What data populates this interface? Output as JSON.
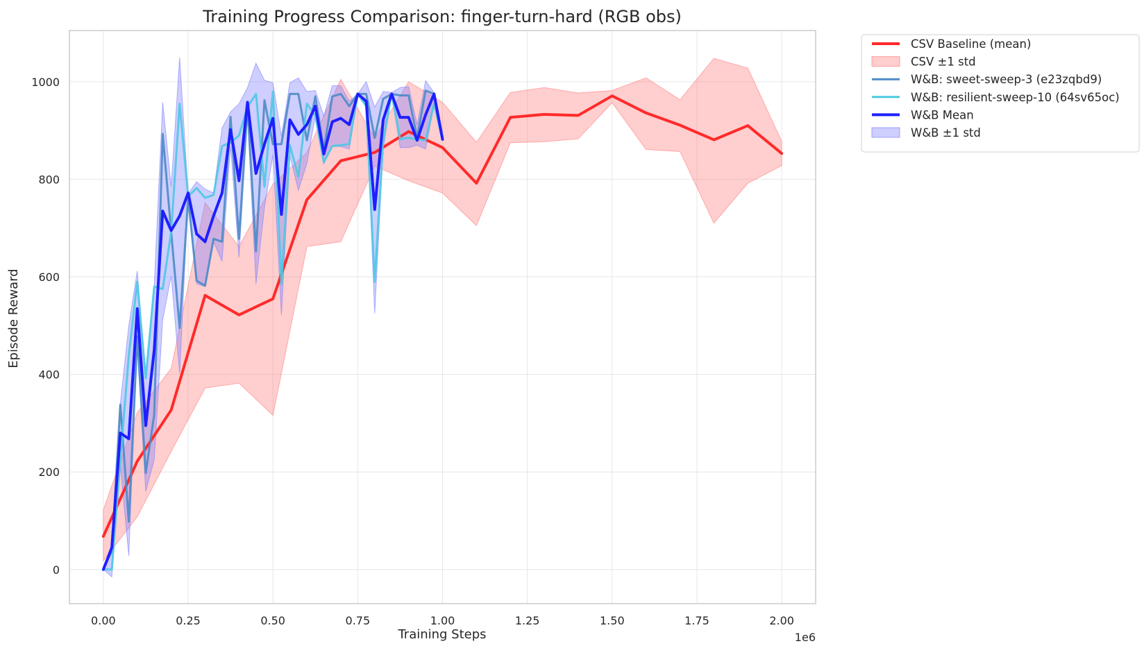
{
  "chart_data": {
    "type": "line",
    "title": "Training Progress Comparison: finger-turn-hard (RGB obs)",
    "xlabel": "Training Steps",
    "ylabel": "Episode Reward",
    "x_offset_label": "1e6",
    "xlim": [
      -100000,
      2100000
    ],
    "ylim": [
      -70,
      1105
    ],
    "x_ticks": [
      0,
      250000,
      500000,
      750000,
      1000000,
      1250000,
      1500000,
      1750000,
      2000000
    ],
    "x_tick_labels": [
      "0.00",
      "0.25",
      "0.50",
      "0.75",
      "1.00",
      "1.25",
      "1.50",
      "1.75",
      "2.00"
    ],
    "y_ticks": [
      0,
      200,
      400,
      600,
      800,
      1000
    ],
    "y_tick_labels": [
      "0",
      "200",
      "400",
      "600",
      "800",
      "1000"
    ],
    "grid": true,
    "legend_position": "outside-top-right",
    "legend": [
      {
        "label": "CSV Baseline (mean)",
        "kind": "line",
        "color": "#ff2a2a"
      },
      {
        "label": "CSV ±1 std",
        "kind": "band",
        "color": "#ff7f7f"
      },
      {
        "label": "W&B: sweet-sweep-3 (e23zqbd9)",
        "kind": "line",
        "color": "#4d8bc4"
      },
      {
        "label": "W&B: resilient-sweep-10 (64sv65oc)",
        "kind": "line",
        "color": "#4ec9e3"
      },
      {
        "label": "W&B Mean",
        "kind": "line",
        "color": "#1f1fff"
      },
      {
        "label": "W&B ±1 std",
        "kind": "band",
        "color": "#7f7fff"
      }
    ],
    "csv_baseline": {
      "x": [
        0,
        100000,
        200000,
        300000,
        400000,
        500000,
        600000,
        700000,
        800000,
        900000,
        1000000,
        1100000,
        1200000,
        1300000,
        1400000,
        1500000,
        1600000,
        1700000,
        1800000,
        1900000,
        2000000
      ],
      "mean": [
        68,
        222,
        327,
        562,
        522,
        555,
        758,
        838,
        855,
        898,
        865,
        792,
        927,
        933,
        931,
        971,
        936,
        911,
        881,
        910,
        853
      ],
      "upper": [
        122,
        322,
        412,
        752,
        662,
        790,
        855,
        1005,
        885,
        1000,
        958,
        876,
        978,
        988,
        977,
        982,
        1008,
        963,
        1048,
        1028,
        878
      ],
      "lower": [
        18,
        108,
        242,
        372,
        382,
        316,
        662,
        672,
        827,
        797,
        772,
        705,
        875,
        877,
        883,
        957,
        861,
        857,
        710,
        792,
        828
      ]
    },
    "wandb_x": [
      0,
      25000,
      50000,
      75000,
      100000,
      125000,
      150000,
      175000,
      200000,
      225000,
      250000,
      275000,
      300000,
      325000,
      350000,
      375000,
      400000,
      425000,
      450000,
      475000,
      500000,
      525000,
      550000,
      575000,
      600000,
      625000,
      650000,
      675000,
      700000,
      725000,
      750000,
      775000,
      800000,
      825000,
      850000,
      875000,
      900000,
      925000,
      950000,
      975000,
      1000000
    ],
    "sweet_sweep_3": [
      0,
      38,
      338,
      98,
      478,
      198,
      318,
      893,
      692,
      495,
      762,
      592,
      582,
      678,
      672,
      928,
      678,
      952,
      652,
      962,
      872,
      872,
      975,
      975,
      880,
      970,
      860,
      970,
      975,
      950,
      975,
      975,
      885,
      965,
      975,
      972,
      972,
      885,
      982,
      975,
      880
    ],
    "resilient_sweep_10": [
      0,
      0,
      225,
      438,
      590,
      392,
      580,
      575,
      692,
      955,
      765,
      782,
      762,
      768,
      868,
      875,
      890,
      948,
      975,
      785,
      980,
      585,
      870,
      805,
      955,
      930,
      835,
      868,
      870,
      872,
      975,
      950,
      590,
      880,
      975,
      882,
      885,
      882,
      880,
      955,
      880
    ],
    "wandb_mean": [
      0,
      45,
      280,
      268,
      535,
      295,
      450,
      735,
      695,
      725,
      772,
      688,
      672,
      725,
      772,
      902,
      797,
      958,
      812,
      872,
      925,
      728,
      922,
      892,
      912,
      950,
      852,
      918,
      925,
      912,
      975,
      960,
      738,
      922,
      975,
      927,
      927,
      880,
      932,
      975,
      882
    ],
    "wandb_upper": [
      0,
      45,
      340,
      500,
      612,
      400,
      582,
      958,
      785,
      1050,
      770,
      795,
      780,
      772,
      905,
      938,
      955,
      988,
      1038,
      1003,
      998,
      888,
      998,
      1008,
      980,
      982,
      930,
      992,
      992,
      960,
      975,
      1000,
      948,
      980,
      978,
      988,
      990,
      912,
      1002,
      978,
      884
    ],
    "wandb_lower": [
      0,
      -15,
      215,
      28,
      455,
      160,
      225,
      512,
      602,
      402,
      762,
      586,
      580,
      672,
      632,
      868,
      640,
      928,
      586,
      742,
      850,
      522,
      848,
      778,
      832,
      930,
      832,
      868,
      867,
      862,
      975,
      950,
      525,
      862,
      975,
      865,
      865,
      870,
      862,
      952,
      880
    ]
  }
}
